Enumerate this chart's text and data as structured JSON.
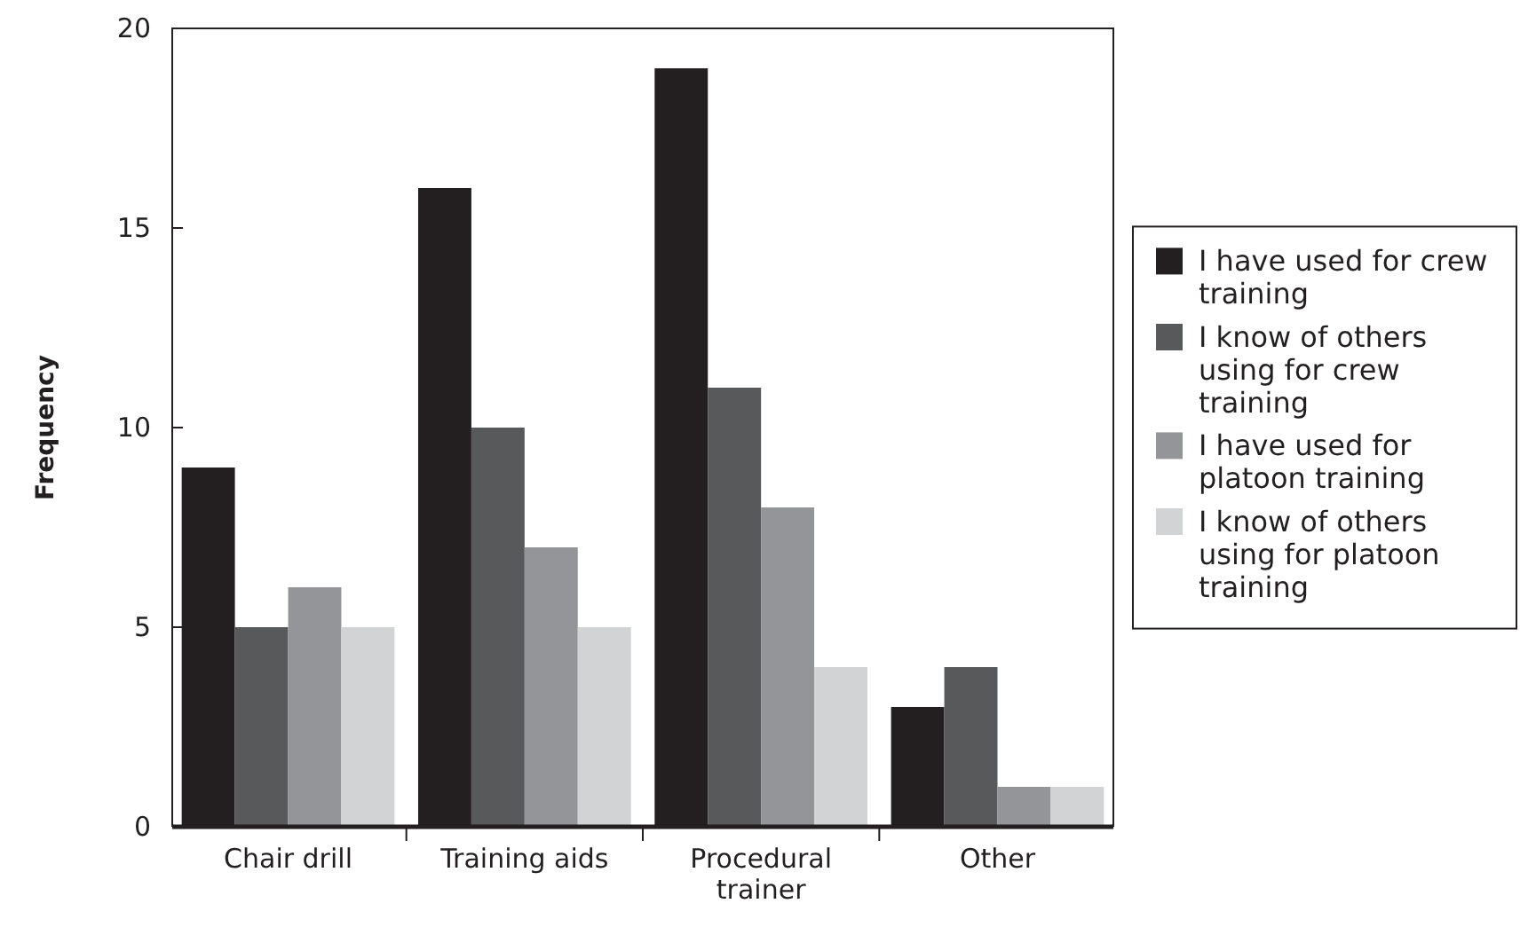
{
  "chart_data": {
    "type": "bar",
    "ylabel": "Frequency",
    "categories": [
      "Chair drill",
      "Training aids",
      "Procedural trainer",
      "Other"
    ],
    "series": [
      {
        "name": "I have used for crew training",
        "color": "#231f20",
        "values": [
          9,
          16,
          19,
          3
        ]
      },
      {
        "name": "I know of others using for crew training",
        "color": "#58595b",
        "values": [
          5,
          10,
          11,
          4
        ]
      },
      {
        "name": "I have used for platoon training",
        "color": "#939598",
        "values": [
          6,
          7,
          8,
          1
        ]
      },
      {
        "name": "I know of others using for platoon training",
        "color": "#d1d3d4",
        "values": [
          5,
          5,
          4,
          1
        ]
      }
    ],
    "ylim": [
      0,
      20
    ],
    "yticks": [
      0,
      5,
      10,
      15,
      20
    ],
    "grid": false,
    "legend": "right"
  }
}
